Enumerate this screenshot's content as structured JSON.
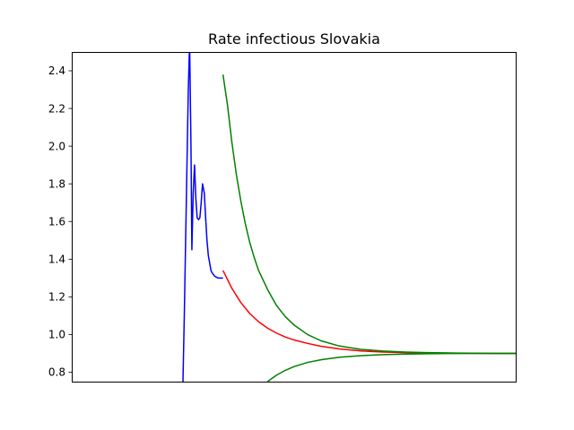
{
  "chart_data": {
    "type": "line",
    "title": "Rate infectious Slovakia",
    "xlabel": "",
    "ylabel": "",
    "ylim": [
      0.75,
      2.5
    ],
    "xlim": [
      0,
      100
    ],
    "y_ticks": [
      "0.8",
      "1.0",
      "1.2",
      "1.4",
      "1.6",
      "1.8",
      "2.0",
      "2.2",
      "2.4"
    ],
    "grid": false,
    "series": [
      {
        "color": "#0000ff",
        "x": [
          25.0,
          25.3,
          25.6,
          25.9,
          26.2,
          26.5,
          26.8,
          27.0,
          27.3,
          27.6,
          27.9,
          28.2,
          28.5,
          28.8,
          29.1,
          29.4,
          29.8,
          30.1,
          30.4,
          30.7,
          31.0,
          31.3,
          31.5,
          31.8,
          32.1,
          32.5,
          32.9,
          33.3,
          33.7,
          34.0
        ],
        "y": [
          0.75,
          1.1,
          1.5,
          1.9,
          2.3,
          2.55,
          2.0,
          1.45,
          1.75,
          1.9,
          1.72,
          1.62,
          1.61,
          1.62,
          1.7,
          1.8,
          1.75,
          1.62,
          1.5,
          1.42,
          1.38,
          1.34,
          1.33,
          1.32,
          1.31,
          1.305,
          1.3,
          1.3,
          1.3,
          1.3
        ]
      },
      {
        "color": "#ff0000",
        "x": [
          34.0,
          36,
          38,
          40,
          42,
          44,
          46,
          48,
          50,
          53,
          56,
          60,
          65,
          70,
          75,
          80,
          85,
          90,
          95,
          100
        ],
        "y": [
          1.34,
          1.245,
          1.17,
          1.112,
          1.068,
          1.034,
          1.008,
          0.987,
          0.971,
          0.953,
          0.938,
          0.924,
          0.913,
          0.907,
          0.904,
          0.902,
          0.901,
          0.9,
          0.9,
          0.9
        ]
      },
      {
        "color": "#008000",
        "x": [
          34.0,
          35,
          36,
          37,
          38,
          39,
          40,
          41,
          42,
          44,
          46,
          48,
          50,
          53,
          56,
          60,
          65,
          70,
          75,
          80,
          85,
          90,
          95,
          100
        ],
        "y": [
          2.38,
          2.22,
          2.02,
          1.85,
          1.71,
          1.59,
          1.49,
          1.41,
          1.34,
          1.24,
          1.155,
          1.095,
          1.05,
          1.0,
          0.967,
          0.94,
          0.921,
          0.912,
          0.907,
          0.904,
          0.902,
          0.901,
          0.9,
          0.9
        ]
      },
      {
        "color": "#008000",
        "x": [
          44.0,
          46,
          48,
          50,
          53,
          56,
          60,
          65,
          70,
          75,
          80,
          85,
          90,
          95,
          100
        ],
        "y": [
          0.75,
          0.784,
          0.81,
          0.83,
          0.852,
          0.866,
          0.879,
          0.888,
          0.893,
          0.896,
          0.898,
          0.899,
          0.9,
          0.9,
          0.9
        ]
      }
    ]
  }
}
